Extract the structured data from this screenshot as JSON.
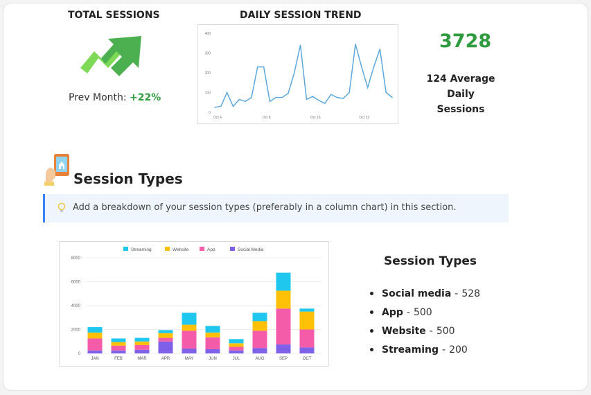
{
  "summary": {
    "total_sessions_title": "TOTAL SESSIONS",
    "prev_month_label": "Prev Month:",
    "prev_month_change": "+22%",
    "daily_trend_title": "DAILY SESSION TREND",
    "big_number": "3728",
    "average_label_line1": "124 Average",
    "average_label_line2": "Daily",
    "average_label_line3": "Sessions"
  },
  "session_types_section": {
    "heading": "Session Types",
    "callout_text": "Add a breakdown of your session types (preferably in a column chart) in this section."
  },
  "types_panel": {
    "heading": "Session Types",
    "items": [
      {
        "name": "Social media",
        "sep": "-",
        "value": "528"
      },
      {
        "name": "App",
        "sep": "-",
        "value": "500"
      },
      {
        "name": "Website",
        "sep": "-",
        "value": "500"
      },
      {
        "name": "Streaming",
        "sep": "-",
        "value": "200"
      }
    ]
  },
  "icons": [
    "arrow-up-icon",
    "phone-hand-icon",
    "lightbulb-icon"
  ],
  "colors": {
    "accent_green": "#2e9b3f",
    "line_blue": "#5aa7dc",
    "streaming": "#1fc7ee",
    "website": "#ffc107",
    "app": "#f45ba8",
    "social_media": "#7e61e8"
  },
  "chart_data": [
    {
      "type": "line",
      "title": "DAILY SESSION TREND",
      "xlabel": "",
      "ylabel": "",
      "x_ticks": [
        "Oct 4",
        "Oct 8",
        "Oct 16",
        "Oct 23"
      ],
      "y_ticks": [
        "0",
        "100",
        "200",
        "300",
        "400"
      ],
      "ylim": [
        0,
        400
      ],
      "grid": false,
      "series": [
        {
          "values": [
            25,
            30,
            100,
            30,
            65,
            55,
            75,
            230,
            230,
            55,
            75,
            75,
            95,
            200,
            340,
            65,
            80,
            60,
            45,
            90,
            75,
            70,
            100,
            345,
            230,
            125,
            230,
            320,
            100,
            75
          ]
        }
      ]
    },
    {
      "type": "bar",
      "stacked": true,
      "title": "",
      "xlabel": "",
      "ylabel": "",
      "categories": [
        "JAN",
        "FEB",
        "MAR",
        "APR",
        "MAY",
        "JUN",
        "JUL",
        "AUG",
        "SEP",
        "OCT"
      ],
      "y_ticks": [
        "0",
        "2000",
        "4000",
        "6000",
        "8000"
      ],
      "ylim": [
        0,
        8000
      ],
      "legend_position": "top",
      "grid": true,
      "series": [
        {
          "name": "Social Media",
          "values": [
            250,
            250,
            300,
            1000,
            400,
            350,
            250,
            450,
            750,
            500
          ]
        },
        {
          "name": "App",
          "values": [
            1000,
            400,
            400,
            300,
            1500,
            1000,
            300,
            1450,
            3000,
            1500
          ]
        },
        {
          "name": "Website",
          "values": [
            500,
            300,
            300,
            400,
            500,
            400,
            300,
            800,
            1500,
            1500
          ]
        },
        {
          "name": "Streaming",
          "values": [
            450,
            300,
            300,
            250,
            1000,
            550,
            350,
            700,
            1500,
            250
          ]
        }
      ]
    }
  ]
}
